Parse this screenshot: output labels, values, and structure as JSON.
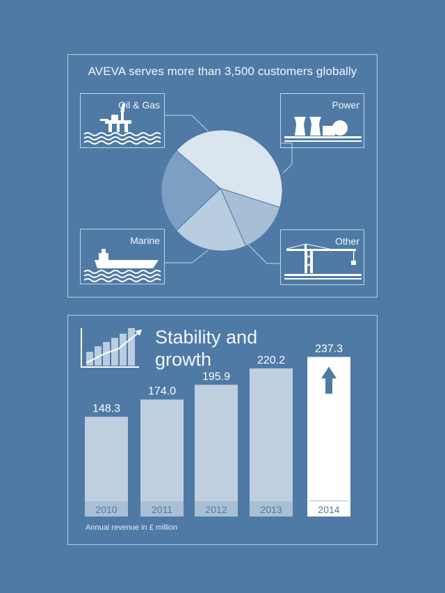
{
  "top_panel": {
    "title": "AVEVA serves more than 3,500 customers globally",
    "segments": [
      {
        "label": "Oil & Gas",
        "icon": "oil-rig-icon"
      },
      {
        "label": "Power",
        "icon": "power-plant-icon"
      },
      {
        "label": "Marine",
        "icon": "ship-icon"
      },
      {
        "label": "Other",
        "icon": "crane-icon"
      }
    ]
  },
  "chart_data": [
    {
      "type": "pie",
      "title": "AVEVA serves more than 3,500 customers globally",
      "slices": [
        {
          "label": "Oil & Gas",
          "value": 43,
          "color": "#dbe5f0"
        },
        {
          "label": "Power",
          "value": 14,
          "color": "#a6bfd6"
        },
        {
          "label": "Other",
          "value": 20,
          "color": "#b8cde0"
        },
        {
          "label": "Marine",
          "value": 23,
          "color": "#7d9fc2"
        }
      ]
    },
    {
      "type": "bar",
      "title": "Stability and growth",
      "categories": [
        "2010",
        "2011",
        "2012",
        "2013",
        "2014"
      ],
      "values": [
        148.3,
        174.0,
        195.9,
        220.2,
        237.3
      ],
      "value_labels": [
        "148.3",
        "174.0",
        "195.9",
        "220.2",
        "237.3"
      ],
      "xlabel": "",
      "ylabel": "",
      "footnote": "Annual revenue in £ million",
      "colors": {
        "bar": "#bfcfdf",
        "highlight": "#ffffff",
        "year_band": "#a9bfd5",
        "year_text": "#4e7aa5",
        "highlight_text": "#4e7aa5"
      },
      "highlight": "2014",
      "grid": false
    }
  ],
  "bottom_panel": {
    "title": "Stability and growth",
    "icon": "growth-chart-icon"
  }
}
